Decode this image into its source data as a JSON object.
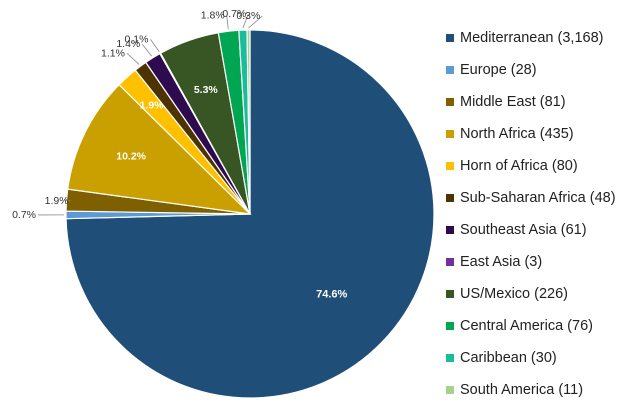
{
  "chart_data": {
    "type": "pie",
    "start_angle_deg": 0,
    "direction": "clockwise",
    "legend_position": "right",
    "slices": [
      {
        "label": "Mediterranean (3,168)",
        "value": 3168,
        "percent_label": "74.6%",
        "color": "#1f4e79"
      },
      {
        "label": "Europe (28)",
        "value": 28,
        "percent_label": "0.7%",
        "color": "#5b9bd5"
      },
      {
        "label": "Middle East (81)",
        "value": 81,
        "percent_label": "1.9%",
        "color": "#7f6000"
      },
      {
        "label": "North Africa (435)",
        "value": 435,
        "percent_label": "10.2%",
        "color": "#c9a000"
      },
      {
        "label": "Horn of Africa (80)",
        "value": 80,
        "percent_label": "1.9%",
        "color": "#ffc000"
      },
      {
        "label": "Sub-Saharan Africa (48)",
        "value": 48,
        "percent_label": "1.1%",
        "color": "#4d3300"
      },
      {
        "label": "Southeast Asia (61)",
        "value": 61,
        "percent_label": "1.4%",
        "color": "#2e0a4f"
      },
      {
        "label": "East Asia (3)",
        "value": 3,
        "percent_label": "0.1%",
        "color": "#7030a0"
      },
      {
        "label": "US/Mexico (226)",
        "value": 226,
        "percent_label": "5.3%",
        "color": "#375623"
      },
      {
        "label": "Central America (76)",
        "value": 76,
        "percent_label": "1.8%",
        "color": "#00a651"
      },
      {
        "label": "Caribbean (30)",
        "value": 30,
        "percent_label": "0.7%",
        "color": "#1abc9c"
      },
      {
        "label": "South America (11)",
        "value": 11,
        "percent_label": "0.3%",
        "color": "#a9d18e"
      }
    ]
  }
}
